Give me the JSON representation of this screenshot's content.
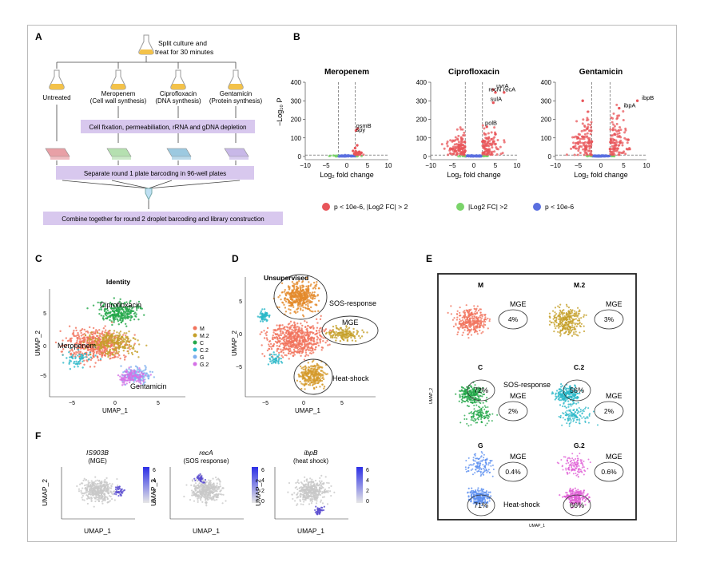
{
  "panel_letters": {
    "A": "A",
    "B": "B",
    "C": "C",
    "D": "D",
    "E": "E",
    "F": "F"
  },
  "panelA": {
    "split_text_1": "Split culture and",
    "split_text_2": "treat for 30 minutes",
    "conditions": [
      {
        "name": "Untreated",
        "sub": ""
      },
      {
        "name": "Meropenem",
        "sub": "(Cell wall synthesis)"
      },
      {
        "name": "Ciprofloxacin",
        "sub": "(DNA synthesis)"
      },
      {
        "name": "Gentamicin",
        "sub": "(Protein synthesis)"
      }
    ],
    "step1": "Cell fixation, permeabiliation, rRNA and gDNA depletion",
    "step2": "Separate round 1 plate barcoding in 96-well plates",
    "step3": "Combine together for round 2 droplet barcoding and library construction",
    "colors": {
      "flask": "#f3c24a",
      "plate1": "#e8a0a6",
      "plate2": "#b5e0b0",
      "plate3": "#9cc9e0",
      "plate4": "#c8b8e8",
      "box": "#d8c8ee"
    }
  },
  "panelB": {
    "ylabel": "−Log₁₀ P",
    "xlabel": "Log₂ fold change",
    "yticks": [
      "0",
      "100",
      "200",
      "300",
      "400"
    ],
    "xticks": [
      "−10",
      "−5",
      "0",
      "5",
      "10"
    ],
    "legend": [
      {
        "label": "p < 10e-6, |Log2 FC| > 2",
        "color": "#e8555a"
      },
      {
        "label": "|Log2 FC| >2",
        "color": "#7ad46a"
      },
      {
        "label": "p < 10e-6",
        "color": "#5a6fe0"
      }
    ]
  },
  "panelC": {
    "title": "Identity",
    "xlabel": "UMAP_1",
    "ylabel": "UMAP_2",
    "cluster_labels": [
      "Ciprofloxacin",
      "Meropenem",
      "Gentamicin"
    ],
    "yticks": [
      "5",
      "0",
      "−5"
    ],
    "xticks": [
      "−5",
      "0",
      "5"
    ]
  },
  "panelD": {
    "title": "Unsupervised",
    "xlabel": "UMAP_1",
    "ylabel": "UMAP_2",
    "annotations": [
      "SOS-response",
      "MGE",
      "Heat-shock"
    ],
    "yticks": [
      "5",
      "0",
      "−5"
    ],
    "xticks": [
      "−5",
      "0",
      "5"
    ]
  },
  "panelE": {
    "xlabel": "UMAP_1",
    "ylabel": "UMAP_2",
    "subpanels": [
      {
        "name": "M",
        "mge": "MGE",
        "mge_pct": "4%",
        "other": "",
        "other_pct": ""
      },
      {
        "name": "M.2",
        "mge": "MGE",
        "mge_pct": "3%",
        "other": "",
        "other_pct": ""
      },
      {
        "name": "C",
        "mge": "MGE",
        "mge_pct": "2%",
        "other": "SOS-response",
        "other_pct": "72%"
      },
      {
        "name": "C.2",
        "mge": "MGE",
        "mge_pct": "2%",
        "other": "",
        "other_pct": "56%"
      },
      {
        "name": "G",
        "mge": "MGE",
        "mge_pct": "0.4%",
        "other": "Heat-shock",
        "other_pct": "71%"
      },
      {
        "name": "G.2",
        "mge": "MGE",
        "mge_pct": "0.6%",
        "other": "",
        "other_pct": "66%"
      }
    ]
  },
  "panelF": {
    "xlabel": "UMAP_1",
    "ylabel": "UMAP_2",
    "genes": [
      {
        "gene": "IS903B",
        "desc": "(MGE)"
      },
      {
        "gene": "recA",
        "desc": "(SOS response)"
      },
      {
        "gene": "ibpB",
        "desc": "(heat shock)"
      }
    ],
    "scale_ticks": [
      "0",
      "2",
      "4",
      "6"
    ]
  },
  "chart_data": [
    {
      "type": "scatter",
      "title": "Meropenem",
      "xlabel": "Log₂ fold change",
      "ylabel": "−Log₁₀ P",
      "xlim": [
        -10,
        10
      ],
      "ylim": [
        0,
        400
      ],
      "annotations": [
        "osmB",
        "spy"
      ],
      "series": [
        {
          "name": "p < 10e-6, |Log2 FC| > 2",
          "points": [
            [
              1.5,
              30
            ],
            [
              2,
              45
            ],
            [
              2.5,
              60
            ],
            [
              3,
              25
            ],
            [
              2.2,
              140
            ],
            [
              2.6,
              150
            ],
            [
              3.5,
              20
            ],
            [
              1.8,
              15
            ]
          ]
        }
      ]
    },
    {
      "type": "scatter",
      "title": "Ciprofloxacin",
      "xlabel": "Log₂ fold change",
      "ylabel": "−Log₁₀ P",
      "xlim": [
        -10,
        10
      ],
      "ylim": [
        0,
        400
      ],
      "annotations": [
        "uvrA",
        "recN",
        "recA",
        "sulA",
        "polB"
      ],
      "series": [
        {
          "name": "p < 10e-6, |Log2 FC| > 2",
          "points": [
            [
              4.5,
              360
            ],
            [
              5,
              345
            ],
            [
              7,
              345
            ],
            [
              4.5,
              290
            ],
            [
              3,
              160
            ],
            [
              -3,
              60
            ],
            [
              -5,
              40
            ],
            [
              5,
              120
            ],
            [
              2,
              80
            ],
            [
              -2,
              30
            ]
          ]
        }
      ]
    },
    {
      "type": "scatter",
      "title": "Gentamicin",
      "xlabel": "Log₂ fold change",
      "ylabel": "−Log₁₀ P",
      "xlim": [
        -10,
        10
      ],
      "ylim": [
        0,
        400
      ],
      "annotations": [
        "ibpA",
        "ibpB"
      ],
      "series": [
        {
          "name": "p < 10e-6, |Log2 FC| > 2",
          "points": [
            [
              4,
              260
            ],
            [
              8,
              300
            ],
            [
              -3,
              150
            ],
            [
              -5,
              100
            ],
            [
              -4,
              300
            ],
            [
              -2,
              80
            ],
            [
              3,
              120
            ],
            [
              6,
              90
            ],
            [
              -6,
              50
            ],
            [
              2,
              40
            ]
          ]
        }
      ]
    }
  ]
}
